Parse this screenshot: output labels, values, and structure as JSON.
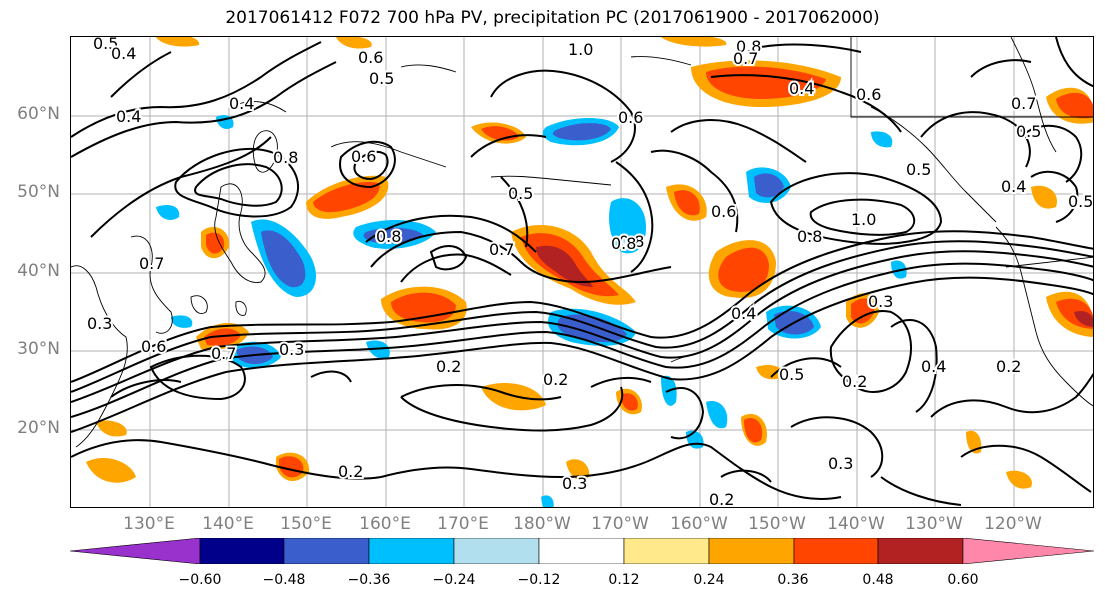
{
  "title": "2017061412 F072 700 hPa PV, precipitation PC (2017061900 - 2017062000)",
  "lat_labels": [
    "60°N",
    "50°N",
    "40°N",
    "30°N",
    "20°N"
  ],
  "lon_labels": [
    "130°E",
    "140°E",
    "150°E",
    "160°E",
    "170°E",
    "180°W",
    "170°W",
    "160°W",
    "150°W",
    "140°W",
    "130°W",
    "120°W"
  ],
  "contour_labels": [
    "0.5",
    "0.4",
    "1.0",
    "0.8",
    "0.6",
    "0.7",
    "0.5",
    "0.4",
    "0.4",
    "0.8",
    "0.4",
    "0.6",
    "0.5",
    "0.7",
    "0.5",
    "0.6",
    "0.8",
    "0.7",
    "0.6",
    "0.5",
    "0.4",
    "0.5",
    "0.6",
    "0.8",
    "1.0",
    "0.8",
    "0.7",
    "0.3",
    "0.6",
    "0.7",
    "0.3",
    "0.2",
    "0.2",
    "0.4",
    "0.3",
    "0.5",
    "0.2",
    "0.4",
    "0.2",
    "0.2",
    "0.3",
    "0.2",
    "0.3",
    "0.8"
  ],
  "colorbar": {
    "ticks": [
      "−0.60",
      "−0.48",
      "−0.36",
      "−0.24",
      "−0.12",
      "0.12",
      "0.24",
      "0.36",
      "0.48",
      "0.60"
    ],
    "colors": [
      "#9932cc",
      "#00008b",
      "#3a5fcd",
      "#00bfff",
      "#b2dfee",
      "#ffffff",
      "#ffe98a",
      "#ffa500",
      "#ff4500",
      "#b22222",
      "#ff88aa"
    ]
  },
  "colors": {
    "land_border": "#000000",
    "gridline": "#a0a0a0",
    "axis_label": "#808080"
  }
}
